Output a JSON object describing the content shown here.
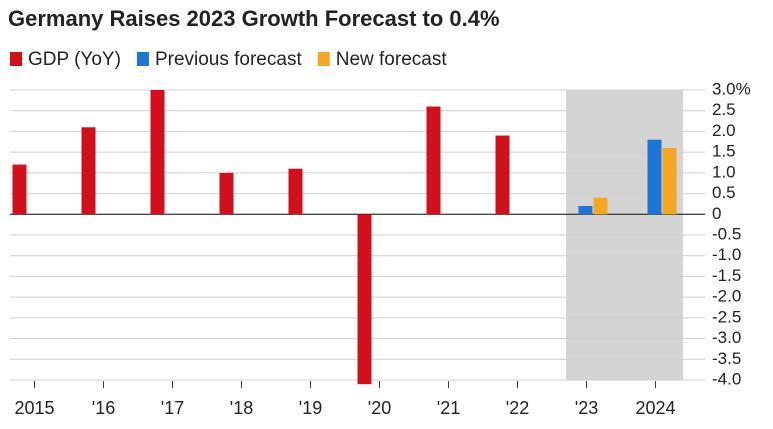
{
  "chart_data": {
    "type": "bar",
    "title": "Germany Raises 2023 Growth Forecast to 0.4%",
    "categories": [
      "2015",
      "'16",
      "'17",
      "'18",
      "'19",
      "'20",
      "'21",
      "'22",
      "'23",
      "2024"
    ],
    "series": [
      {
        "name": "GDP (YoY)",
        "color": "#d0111b",
        "values": [
          1.2,
          2.1,
          3.0,
          1.0,
          1.1,
          -4.1,
          2.6,
          1.9,
          null,
          null
        ]
      },
      {
        "name": "Previous forecast",
        "color": "#1f74d6",
        "values": [
          null,
          null,
          null,
          null,
          null,
          null,
          null,
          null,
          0.2,
          1.8
        ]
      },
      {
        "name": "New forecast",
        "color": "#f5a623",
        "values": [
          null,
          null,
          null,
          null,
          null,
          null,
          null,
          null,
          0.4,
          1.6
        ]
      }
    ],
    "ylim": [
      -4,
      3
    ],
    "yticks": [
      {
        "value": 3,
        "label": "3.0%"
      },
      2.5,
      {
        "value": 2,
        "label": "2.0"
      },
      1.5,
      {
        "value": 1,
        "label": "1.0"
      },
      0.5,
      0,
      -0.5,
      {
        "value": -1,
        "label": "-1.0"
      },
      -1.5,
      {
        "value": -2,
        "label": "-2.0"
      },
      -2.5,
      {
        "value": -3,
        "label": "-3.0"
      },
      -3.5,
      {
        "value": -4,
        "label": "-4.0"
      }
    ],
    "grid": true
  }
}
